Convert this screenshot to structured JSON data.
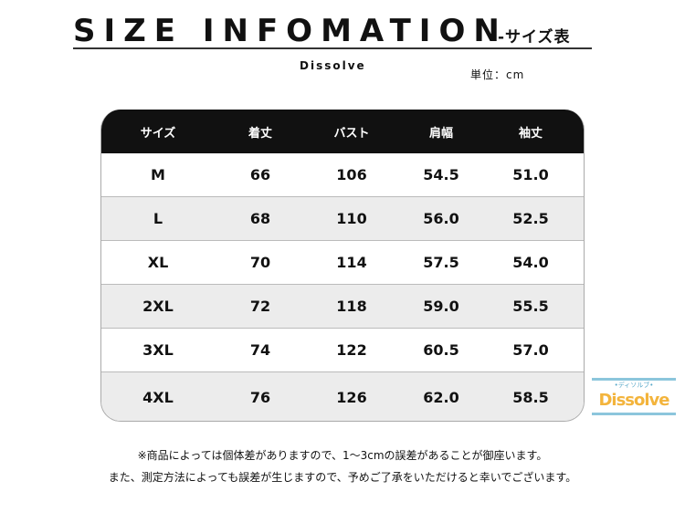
{
  "header": {
    "title": "SIZE INFOMATION",
    "subtitle": "-サイズ表",
    "brand": "Dissolve",
    "unit": "単位：cm"
  },
  "table": {
    "columns": [
      "サイズ",
      "着丈",
      "バスト",
      "肩幅",
      "袖丈"
    ],
    "rows": [
      [
        "M",
        "66",
        "106",
        "54.5",
        "51.0"
      ],
      [
        "L",
        "68",
        "110",
        "56.0",
        "52.5"
      ],
      [
        "XL",
        "70",
        "114",
        "57.5",
        "54.0"
      ],
      [
        "2XL",
        "72",
        "118",
        "59.0",
        "55.5"
      ],
      [
        "3XL",
        "74",
        "122",
        "60.5",
        "57.0"
      ],
      [
        "4XL",
        "76",
        "126",
        "62.0",
        "58.5"
      ]
    ]
  },
  "watermark": {
    "text": "Dissolve",
    "small": "•ディソルブ•",
    "colors": {
      "text": "#f3b43c",
      "bars": "#8cc6dc"
    }
  },
  "notes": [
    "※商品によっては個体差がありますので、1～3cmの誤差があることが御座います。",
    "また、測定方法によっても誤差が生じますので、予めご了承をいただけると幸いでございます。"
  ]
}
